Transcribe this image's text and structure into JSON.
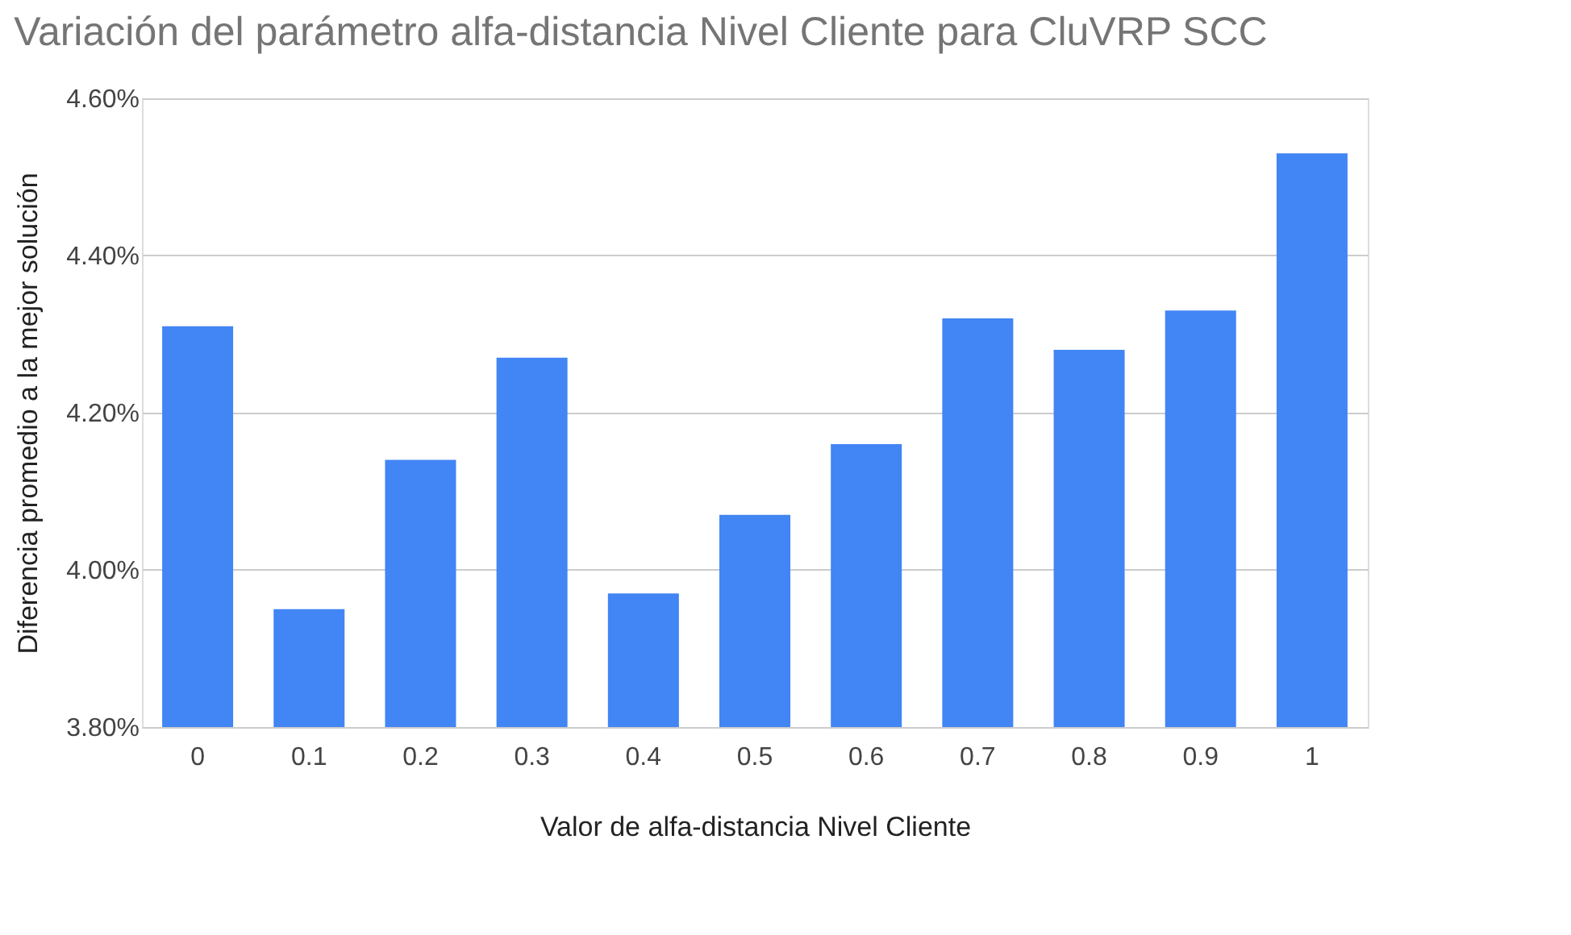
{
  "chart_data": {
    "type": "bar",
    "title": "Variación del parámetro alfa-distancia Nivel Cliente para CluVRP SCC",
    "xlabel": "Valor de alfa-distancia Nivel Cliente",
    "ylabel": "Diferencia promedio a la mejor solución",
    "categories": [
      "0",
      "0.1",
      "0.2",
      "0.3",
      "0.4",
      "0.5",
      "0.6",
      "0.7",
      "0.8",
      "0.9",
      "1"
    ],
    "series": [
      {
        "color": "#4285f4",
        "values": [
          4.31,
          3.95,
          4.14,
          4.27,
          3.97,
          4.07,
          4.16,
          4.32,
          4.28,
          4.33,
          4.53
        ]
      }
    ],
    "ylim": [
      3.8,
      4.6
    ],
    "yticks": [
      {
        "value": 3.8,
        "label": "3.80%"
      },
      {
        "value": 4.0,
        "label": "4.00%"
      },
      {
        "value": 4.2,
        "label": "4.20%"
      },
      {
        "value": 4.4,
        "label": "4.40%"
      },
      {
        "value": 4.6,
        "label": "4.60%"
      }
    ],
    "grid": "y"
  }
}
